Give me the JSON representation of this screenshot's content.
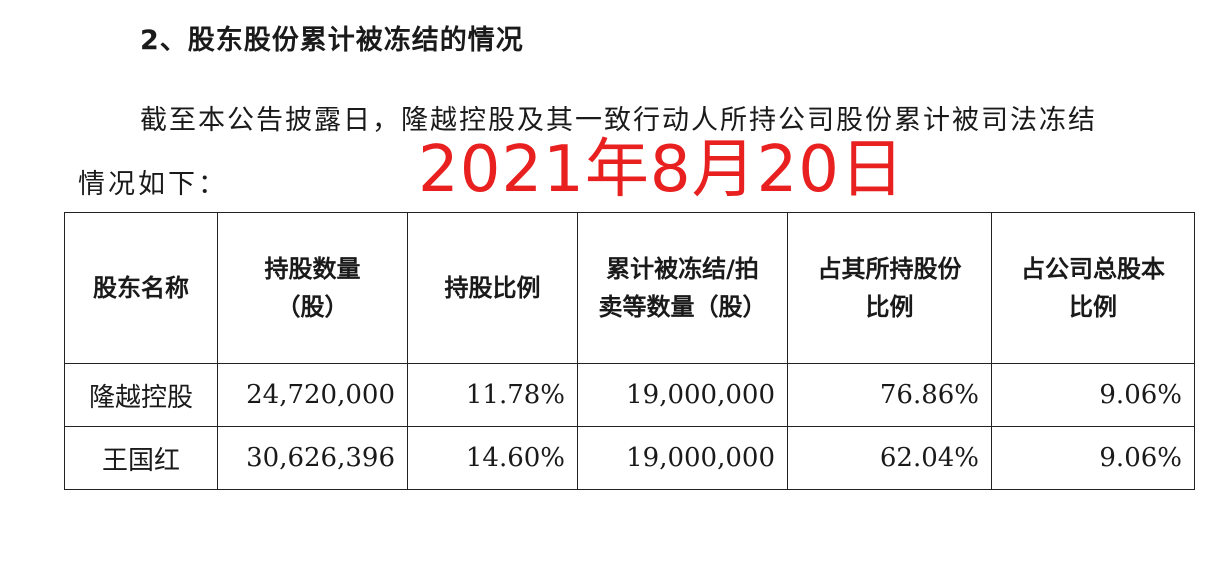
{
  "heading": "2、股东股份累计被冻结的情况",
  "paragraph": {
    "line1": "截至本公告披露日，隆越控股及其一致行动人所持公司股份累计被司法冻结",
    "line2": "情况如下："
  },
  "stamp_text": "2021年8月20日",
  "table": {
    "headers": [
      "股东名称",
      "持股数量\n（股）",
      "持股比例",
      "累计被冻结/拍\n卖等数量（股）",
      "占其所持股份\n比例",
      "占公司总股本\n比例"
    ],
    "rows": [
      [
        "隆越控股",
        "24,720,000",
        "11.78%",
        "19,000,000",
        "76.86%",
        "9.06%"
      ],
      [
        "王国红",
        "30,626,396",
        "14.60%",
        "19,000,000",
        "62.04%",
        "9.06%"
      ]
    ]
  }
}
